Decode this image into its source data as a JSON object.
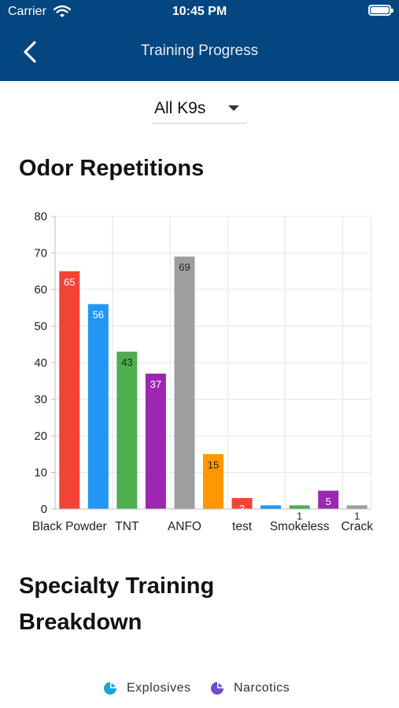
{
  "status_bar": {
    "carrier": "Carrier",
    "time": "10:45 PM"
  },
  "nav": {
    "title": "Training Progress",
    "back_icon": "chevron-left-icon"
  },
  "filter": {
    "selected": "All K9s"
  },
  "sections": {
    "odor_title": "Odor Repetitions",
    "specialty_title": "Specialty Training Breakdown"
  },
  "chart_data": {
    "type": "bar",
    "categories": [
      "Black Powder",
      "",
      "TNT",
      "",
      "ANFO",
      "",
      "test",
      "",
      "Smokeless",
      "",
      "Crack"
    ],
    "values": [
      65,
      56,
      43,
      37,
      69,
      15,
      3,
      1,
      1,
      5,
      1
    ],
    "data_labels": [
      "65",
      "56",
      "43",
      "37",
      "69",
      "15",
      "3",
      "",
      "1",
      "5",
      "1"
    ],
    "colors": [
      "#f44336",
      "#2196f3",
      "#4caf50",
      "#9c27b0",
      "#9e9e9e",
      "#ff9800",
      "#f44336",
      "#2196f3",
      "#4caf50",
      "#9c27b0",
      "#9e9e9e"
    ],
    "label_colors": [
      "#ffffff",
      "#ffffff",
      "#222222",
      "#ffffff",
      "#222222",
      "#222222",
      "#ffffff",
      "#222222",
      "#222222",
      "#ffffff",
      "#222222"
    ],
    "xlabel": "",
    "ylabel": "",
    "ylim": [
      0,
      80
    ],
    "yticks": [
      0,
      10,
      20,
      30,
      40,
      50,
      60,
      70,
      80
    ],
    "grid": true
  },
  "legend": {
    "items": [
      {
        "label": "Explosives",
        "color": "#1ba6d8",
        "icon": "pie-chart-icon"
      },
      {
        "label": "Narcotics",
        "color": "#6a4fc9",
        "icon": "pie-chart-icon"
      }
    ]
  }
}
